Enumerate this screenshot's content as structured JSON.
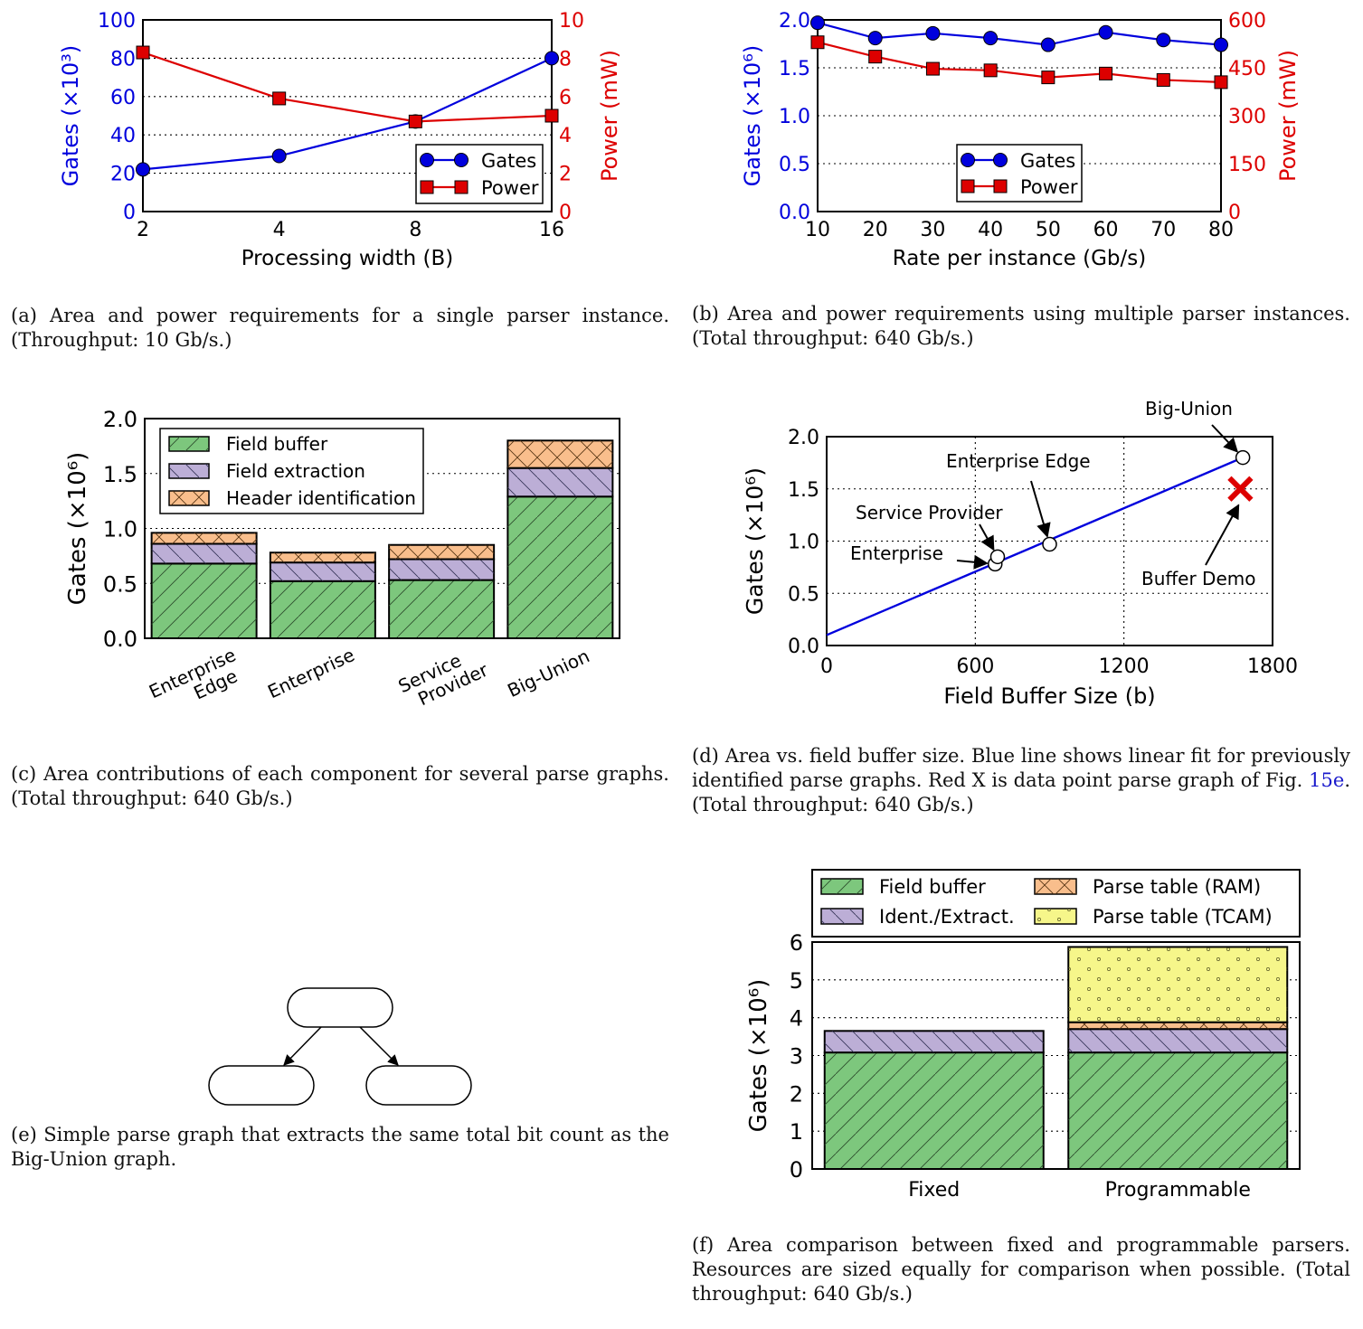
{
  "colors": {
    "blue": "#0000dd",
    "red": "#dd0000",
    "field_buffer": "#7dc77d",
    "field_extraction": "#bcaed6",
    "header_identification": "#f9be8c",
    "parse_table_tcam": "#f6f68a"
  },
  "charts": [
    {
      "id": "a",
      "caption_prefix": "(a)",
      "caption": "Area and power requirements for a single parser instance. (Throughput: 10 Gb/s.)",
      "chart_data": {
        "type": "line",
        "x": [
          2,
          4,
          8,
          16
        ],
        "xticks": [
          "2",
          "4",
          "8",
          "16"
        ],
        "x_scale": "log2",
        "xlabel": "Processing width (B)",
        "ylabel": "Gates (×10³)",
        "y2label": "Power (mW)",
        "ylim": [
          0,
          100
        ],
        "y2lim": [
          0,
          10
        ],
        "yticks": [
          0,
          20,
          40,
          60,
          80,
          100
        ],
        "y2ticks": [
          0,
          2,
          4,
          6,
          8,
          10
        ],
        "grid": "horizontal dotted",
        "legend": "lower-right",
        "series": [
          {
            "name": "Gates",
            "axis": "left",
            "values": [
              22,
              29,
              47,
              80
            ],
            "marker": "circle",
            "color": "#0000dd"
          },
          {
            "name": "Power",
            "axis": "right",
            "values": [
              8.3,
              5.9,
              4.7,
              5.0
            ],
            "marker": "square",
            "color": "#dd0000"
          }
        ]
      }
    },
    {
      "id": "b",
      "caption_prefix": "(b)",
      "caption": "Area and power requirements using multiple parser instances. (Total throughput: 640 Gb/s.)",
      "chart_data": {
        "type": "line",
        "x": [
          10,
          20,
          30,
          40,
          50,
          60,
          70,
          80
        ],
        "xticks": [
          "10",
          "20",
          "30",
          "40",
          "50",
          "60",
          "70",
          "80"
        ],
        "xlabel": "Rate per instance (Gb/s)",
        "ylabel": "Gates (×10⁶)",
        "y2label": "Power (mW)",
        "xlim": [
          10,
          80
        ],
        "ylim": [
          0,
          2.0
        ],
        "y2lim": [
          0,
          600
        ],
        "yticks": [
          "0.0",
          "0.5",
          "1.0",
          "1.5",
          "2.0"
        ],
        "y2ticks": [
          "0",
          "150",
          "300",
          "450",
          "600"
        ],
        "grid": "horizontal dotted",
        "legend": "lower-center",
        "series": [
          {
            "name": "Gates",
            "axis": "left",
            "values": [
              1.97,
              1.81,
              1.86,
              1.81,
              1.74,
              1.87,
              1.79,
              1.74
            ],
            "marker": "circle",
            "color": "#0000dd"
          },
          {
            "name": "Power",
            "axis": "right",
            "values": [
              530,
              485,
              447,
              442,
              420,
              432,
              412,
              405
            ],
            "marker": "square",
            "color": "#dd0000"
          }
        ]
      }
    },
    {
      "id": "c",
      "caption_prefix": "(c)",
      "caption": "Area contributions of each component for several parse graphs. (Total throughput: 640 Gb/s.)",
      "chart_data": {
        "type": "bar",
        "stacked": true,
        "categories": [
          "Enterprise\nEdge",
          "Enterprise",
          "Service\nProvider",
          "Big-Union"
        ],
        "ylabel": "Gates (×10⁶)",
        "ylim": [
          0,
          2.0
        ],
        "yticks": [
          "0.0",
          "0.5",
          "1.0",
          "1.5",
          "2.0"
        ],
        "grid": "horizontal dotted",
        "legend": "top-left",
        "series": [
          {
            "name": "Field buffer",
            "values": [
              0.68,
              0.52,
              0.53,
              1.29
            ],
            "color": "#7dc77d",
            "hatch": "/"
          },
          {
            "name": "Field extraction",
            "values": [
              0.18,
              0.17,
              0.19,
              0.26
            ],
            "color": "#bcaed6",
            "hatch": "\\"
          },
          {
            "name": "Header identification",
            "values": [
              0.1,
              0.09,
              0.13,
              0.25
            ],
            "color": "#f9be8c",
            "hatch": "x"
          }
        ]
      }
    },
    {
      "id": "d",
      "caption_prefix": "(d)",
      "caption": "Area vs. field buffer size. Blue line shows linear fit for previously identified parse graphs. Red X is data point parse graph of Fig. 15e. (Total throughput: 640 Gb/s.)",
      "caption_ref": "15e",
      "chart_data": {
        "type": "scatter",
        "xlabel": "Field Buffer Size (b)",
        "ylabel": "Gates (×10⁶)",
        "xlim": [
          0,
          1800
        ],
        "ylim": [
          0,
          2.0
        ],
        "xticks": [
          "0",
          "600",
          "1200",
          "1800"
        ],
        "yticks": [
          "0.0",
          "0.5",
          "1.0",
          "1.5",
          "2.0"
        ],
        "grid": "dotted",
        "fit_line": {
          "x": [
            0,
            1680
          ],
          "y": [
            0.1,
            1.8
          ],
          "color": "#0000dd"
        },
        "points": [
          {
            "name": "Enterprise",
            "x": 680,
            "y": 0.78
          },
          {
            "name": "Service Provider",
            "x": 690,
            "y": 0.85
          },
          {
            "name": "Enterprise Edge",
            "x": 900,
            "y": 0.97
          },
          {
            "name": "Big-Union",
            "x": 1680,
            "y": 1.8
          }
        ],
        "highlight": {
          "name": "Buffer Demo",
          "x": 1670,
          "y": 1.5,
          "marker": "x",
          "color": "#dd0000"
        }
      }
    },
    {
      "id": "e",
      "caption_prefix": "(e)",
      "caption": "Simple parse graph that extracts the same total bit count as the Big-Union graph.",
      "diagram": {
        "nodes": 3,
        "edges": [
          [
            0,
            1
          ],
          [
            0,
            2
          ]
        ]
      }
    },
    {
      "id": "f",
      "caption_prefix": "(f)",
      "caption": "Area comparison between fixed and programmable parsers. Resources are sized equally for comparison when possible. (Total throughput: 640 Gb/s.)",
      "chart_data": {
        "type": "bar",
        "stacked": true,
        "categories": [
          "Fixed",
          "Programmable"
        ],
        "ylabel": "Gates (×10⁶)",
        "ylim": [
          0,
          6
        ],
        "yticks": [
          "0",
          "1",
          "2",
          "3",
          "4",
          "5",
          "6"
        ],
        "grid": "horizontal dotted",
        "legend": "above",
        "series": [
          {
            "name": "Field buffer",
            "values": [
              3.08,
              3.08
            ],
            "color": "#7dc77d",
            "hatch": "/"
          },
          {
            "name": "Ident./Extract.",
            "values": [
              0.57,
              0.62
            ],
            "color": "#bcaed6",
            "hatch": "\\"
          },
          {
            "name": "Parse table (RAM)",
            "values": [
              0,
              0.18
            ],
            "color": "#f9be8c",
            "hatch": "x"
          },
          {
            "name": "Parse table (TCAM)",
            "values": [
              0,
              1.99
            ],
            "color": "#f6f68a",
            "hatch": "o"
          }
        ]
      }
    }
  ]
}
